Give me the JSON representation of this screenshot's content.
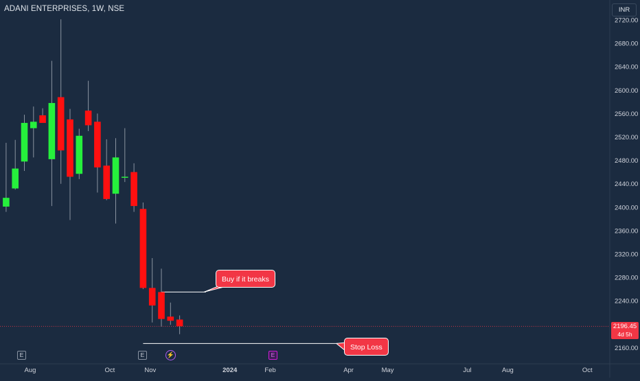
{
  "chart_title": "ADANI ENTERPRISES, 1W, NSE",
  "currency_label": "INR",
  "last_price": {
    "value": "2196.45",
    "timer": "4d 5h"
  },
  "annotations": {
    "buy_label": "Buy if it breaks",
    "stop_label": "Stop Loss"
  },
  "event_markers": [
    {
      "type": "earnings",
      "label": "E"
    },
    {
      "type": "earnings",
      "label": "E"
    },
    {
      "type": "dividend",
      "label": "⚡"
    },
    {
      "type": "earnings",
      "label": "E"
    }
  ],
  "colors": {
    "background": "#1b2b40",
    "up": "#26f03c",
    "down": "#ff1010",
    "callout": "#f23645",
    "axis_text": "#d1d4dc",
    "earnings_upcoming": "#d21bd9"
  },
  "chart_data": {
    "type": "candlestick",
    "title": "ADANI ENTERPRISES, 1W, NSE",
    "timeframe": "1W",
    "ylim": [
      2140,
      2740
    ],
    "y_ticks": [
      "2160.00",
      "2200.00",
      "2240.00",
      "2280.00",
      "2320.00",
      "2360.00",
      "2400.00",
      "2440.00",
      "2480.00",
      "2520.00",
      "2560.00",
      "2600.00",
      "2640.00",
      "2680.00",
      "2720.00"
    ],
    "x_ticks": [
      {
        "label": "Aug",
        "date": "2023-08-01"
      },
      {
        "label": "Oct",
        "date": "2023-10-01"
      },
      {
        "label": "Nov",
        "date": "2023-11-01"
      },
      {
        "label": "2024",
        "date": "2024-01-01"
      },
      {
        "label": "Feb",
        "date": "2024-02-01"
      },
      {
        "label": "Apr",
        "date": "2024-04-01"
      },
      {
        "label": "May",
        "date": "2024-05-01"
      },
      {
        "label": "Jul",
        "date": "2024-07-01"
      },
      {
        "label": "Aug",
        "date": "2024-08-01"
      },
      {
        "label": "Oct",
        "date": "2024-10-01"
      }
    ],
    "candles": [
      {
        "date": "2023-07-10",
        "open": 2401,
        "high": 2510,
        "low": 2392,
        "close": 2416
      },
      {
        "date": "2023-07-17",
        "open": 2432,
        "high": 2515,
        "low": 2430,
        "close": 2466
      },
      {
        "date": "2023-07-24",
        "open": 2478,
        "high": 2558,
        "low": 2462,
        "close": 2544
      },
      {
        "date": "2023-07-31",
        "open": 2535,
        "high": 2572,
        "low": 2485,
        "close": 2546
      },
      {
        "date": "2023-08-07",
        "open": 2557,
        "high": 2569,
        "low": 2545,
        "close": 2544
      },
      {
        "date": "2023-08-14",
        "open": 2482,
        "high": 2650,
        "low": 2402,
        "close": 2578
      },
      {
        "date": "2023-08-21",
        "open": 2588,
        "high": 2721,
        "low": 2440,
        "close": 2497
      },
      {
        "date": "2023-08-28",
        "open": 2550,
        "high": 2568,
        "low": 2378,
        "close": 2452
      },
      {
        "date": "2023-09-04",
        "open": 2457,
        "high": 2534,
        "low": 2448,
        "close": 2522
      },
      {
        "date": "2023-09-11",
        "open": 2565,
        "high": 2616,
        "low": 2530,
        "close": 2540
      },
      {
        "date": "2023-09-18",
        "open": 2546,
        "high": 2560,
        "low": 2425,
        "close": 2468
      },
      {
        "date": "2023-09-25",
        "open": 2471,
        "high": 2516,
        "low": 2412,
        "close": 2414
      },
      {
        "date": "2023-10-02",
        "open": 2423,
        "high": 2518,
        "low": 2372,
        "close": 2485
      },
      {
        "date": "2023-10-09",
        "open": 2452,
        "high": 2535,
        "low": 2443,
        "close": 2452
      },
      {
        "date": "2023-10-16",
        "open": 2460,
        "high": 2475,
        "low": 2392,
        "close": 2402
      },
      {
        "date": "2023-10-23",
        "open": 2397,
        "high": 2408,
        "low": 2260,
        "close": 2262
      },
      {
        "date": "2023-10-30",
        "open": 2262,
        "high": 2313,
        "low": 2203,
        "close": 2232
      },
      {
        "date": "2023-11-06",
        "open": 2255,
        "high": 2295,
        "low": 2196,
        "close": 2209
      },
      {
        "date": "2023-11-13",
        "open": 2213,
        "high": 2237,
        "low": 2199,
        "close": 2206
      },
      {
        "date": "2023-11-20",
        "open": 2208,
        "high": 2215,
        "low": 2183,
        "close": 2196.45
      }
    ],
    "levels": [
      {
        "name": "Buy if it breaks",
        "value": 2255,
        "start": "2023-11-06"
      },
      {
        "name": "Stop Loss",
        "value": 2167,
        "start": "2023-10-23"
      }
    ],
    "last_price": 2196.45,
    "grid": false,
    "legend": "none"
  }
}
